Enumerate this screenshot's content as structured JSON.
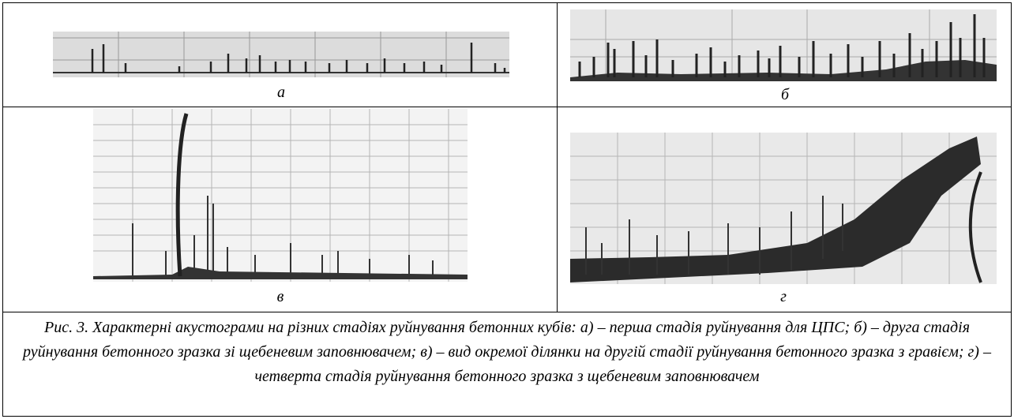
{
  "figure": {
    "panels": [
      {
        "label": "а"
      },
      {
        "label": "б"
      },
      {
        "label": "в"
      },
      {
        "label": "г"
      }
    ],
    "caption": "Рис. 3. Характерні акустограми на різних стадіях руйнування бетонних кубів: а) – перша стадія руйнування для ЦПС; б) – друга стадія руйнування бетонного зразка зі щебеневим заповнювачем; в) – вид окремої ділянки на другій стадії руйнування бетонного зразка з гравієм; г) – четверта стадія руйнування бетонного зразка з щебеневим заповнювачем"
  }
}
